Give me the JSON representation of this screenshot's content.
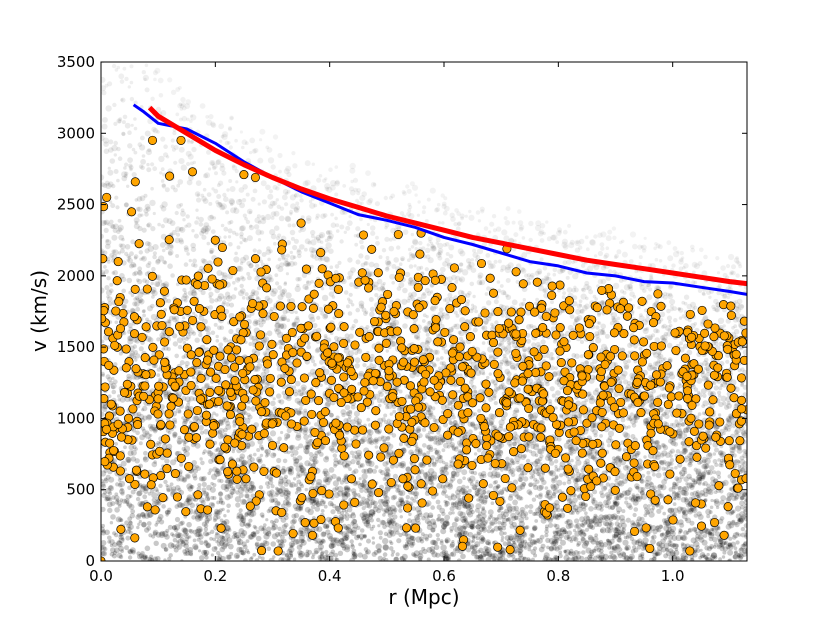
{
  "chart_data": {
    "type": "scatter",
    "title": "",
    "xlabel": "r (Mpc)",
    "ylabel": "v (km/s)",
    "xlim": [
      0.0,
      1.13
    ],
    "ylim": [
      0,
      3500
    ],
    "xticks": [
      0.0,
      0.2,
      0.4,
      0.6,
      0.8,
      1.0
    ],
    "xtick_labels": [
      "0.0",
      "0.2",
      "0.4",
      "0.6",
      "0.8",
      "1.0"
    ],
    "yticks": [
      0,
      500,
      1000,
      1500,
      2000,
      2500,
      3000,
      3500
    ],
    "ytick_labels": [
      "0",
      "500",
      "1000",
      "1500",
      "2000",
      "2500",
      "3000",
      "3500"
    ],
    "grid": false,
    "colors": {
      "members": "#ffa500",
      "member_edge": "#000000",
      "blue_line": "#0000ff",
      "red_line": "#ff0000",
      "background_density": "#000000"
    },
    "series": [
      {
        "name": "caustic (blue)",
        "type": "line",
        "x": [
          0.057,
          0.075,
          0.1,
          0.15,
          0.2,
          0.25,
          0.3,
          0.35,
          0.4,
          0.45,
          0.5,
          0.55,
          0.6,
          0.65,
          0.7,
          0.75,
          0.8,
          0.85,
          0.9,
          0.95,
          1.0,
          1.05,
          1.1,
          1.13
        ],
        "y": [
          3200,
          3150,
          3070,
          3030,
          2930,
          2800,
          2690,
          2590,
          2510,
          2430,
          2390,
          2340,
          2270,
          2220,
          2160,
          2100,
          2070,
          2020,
          2000,
          1960,
          1950,
          1920,
          1890,
          1870
        ]
      },
      {
        "name": "caustic (red)",
        "type": "line",
        "x": [
          0.085,
          0.1,
          0.15,
          0.2,
          0.25,
          0.3,
          0.35,
          0.4,
          0.45,
          0.5,
          0.55,
          0.6,
          0.65,
          0.7,
          0.75,
          0.8,
          0.85,
          0.9,
          0.95,
          1.0,
          1.05,
          1.1,
          1.13
        ],
        "y": [
          3180,
          3120,
          3000,
          2880,
          2780,
          2690,
          2610,
          2540,
          2480,
          2420,
          2370,
          2320,
          2270,
          2230,
          2190,
          2150,
          2110,
          2080,
          2050,
          2020,
          1990,
          1960,
          1945
        ]
      },
      {
        "name": "galaxies (orange)",
        "type": "scatter",
        "count": 1200,
        "r_range": [
          0.0,
          1.13
        ],
        "v_range": [
          0,
          2950
        ],
        "sample_points": [
          [
            0.09,
            2950
          ],
          [
            0.12,
            2700
          ],
          [
            0.14,
            2950
          ],
          [
            0.16,
            2730
          ],
          [
            0.01,
            2550
          ],
          [
            0.06,
            2660
          ],
          [
            0.03,
            2100
          ],
          [
            0.2,
            2250
          ],
          [
            0.25,
            2710
          ],
          [
            0.27,
            2690
          ],
          [
            0.35,
            2370
          ],
          [
            0.52,
            2290
          ],
          [
            0.56,
            2300
          ],
          [
            0.71,
            2190
          ],
          [
            0.31,
            70
          ],
          [
            1.03,
            70
          ],
          [
            0.37,
            180
          ],
          [
            0.21,
            230
          ],
          [
            1.09,
            180
          ],
          [
            0.0,
            0
          ]
        ]
      },
      {
        "name": "simulation particles (grey)",
        "type": "density",
        "r_range": [
          0.0,
          1.13
        ],
        "v_range": [
          0,
          3400
        ]
      }
    ]
  }
}
